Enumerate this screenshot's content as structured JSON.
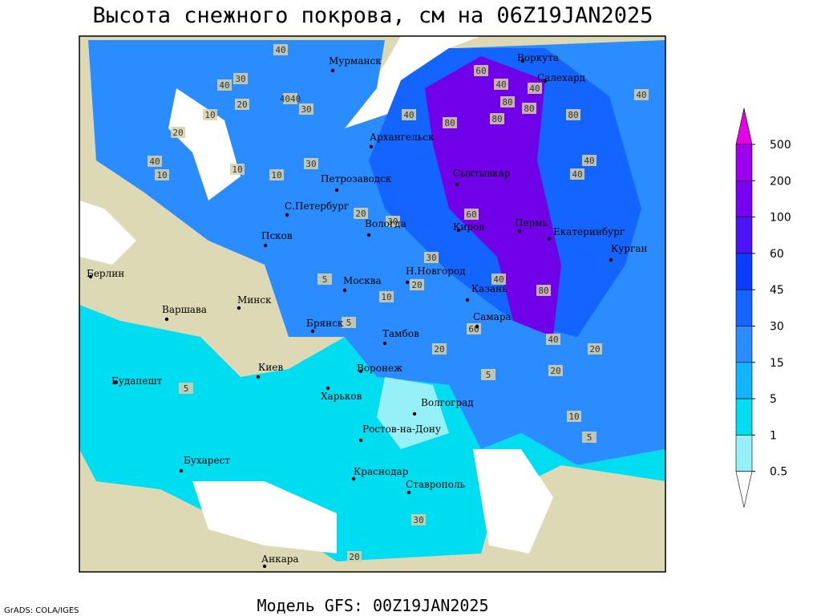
{
  "title": "Высота снежного покрова, см на 06Z19JAN2025",
  "footer": {
    "credit": "GrADS: COLA/IGES",
    "model": "Модель GFS: 00Z19JAN2025"
  },
  "legend": {
    "ticks": [
      500,
      200,
      100,
      60,
      45,
      30,
      15,
      5,
      1,
      0.5
    ],
    "colors": [
      "#e600e6",
      "#a000f0",
      "#7800f0",
      "#4b14f5",
      "#0a3cff",
      "#1464ff",
      "#2a8cff",
      "#14b4ff",
      "#00dcf0",
      "#96f0f8",
      "#ffffff"
    ]
  },
  "cities": [
    "Мурманск",
    "Архангельск",
    "Воркута",
    "Салехард",
    "Петрозаводск",
    "Сыктывкар",
    "С.Петербург",
    "Вологда",
    "Киров",
    "Пермь",
    "Екатеринбург",
    "Курган",
    "Псков",
    "Берлин",
    "Н.Новгород",
    "Москва",
    "Казань",
    "Минск",
    "Варшава",
    "Самара",
    "Брянск",
    "Тамбов",
    "Киев",
    "Воронеж",
    "Будапешт",
    "Харьков",
    "Волгоград",
    "Ростов-на-Дону",
    "Бухарест",
    "Краснодар",
    "Ставрополь",
    "Анкара"
  ],
  "contour_labels": [
    "40",
    "30",
    "40",
    "10",
    "20",
    "4040",
    "30",
    "20",
    "40",
    "10",
    "10",
    "10",
    "30",
    "40",
    "80",
    "60",
    "40",
    "80",
    "80",
    "80",
    "40",
    "40",
    "40",
    "80",
    "40",
    "20",
    "30",
    "20",
    "30",
    "5",
    "10",
    "5",
    "60",
    "80",
    "40",
    "20",
    "20",
    "5",
    "20",
    "10",
    "5",
    "5",
    "30",
    "20",
    "60",
    "40"
  ]
}
